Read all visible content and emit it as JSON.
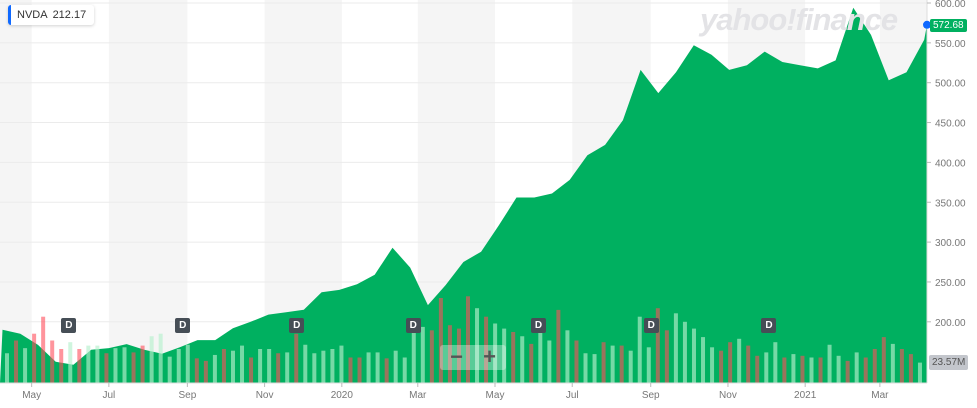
{
  "ticker": {
    "symbol": "NVDA",
    "value": "212.17",
    "accent": "#0f69ff"
  },
  "watermark": "yahoo!finance",
  "zoom_controls": {
    "minus": "−",
    "plus": "+"
  },
  "dividend_marker": "D",
  "dividend_dates": [
    "2019-05-30",
    "2019-08-28",
    "2019-11-26",
    "2020-02-26",
    "2020-06-04",
    "2020-09-01",
    "2020-12-03"
  ],
  "last_price_label": "572.68",
  "last_volume_label": "23.57M",
  "colors": {
    "area": "#00b060",
    "down_volume": "#ff4d5a",
    "up_volume": "#b5f0cc",
    "last_point": "#0f69ff"
  },
  "chart_data": {
    "type": "area",
    "title": "",
    "ylim": [
      150,
      600
    ],
    "y_ticks": [
      "200.00",
      "250.00",
      "300.00",
      "350.00",
      "400.00",
      "450.00",
      "500.00",
      "550.00",
      "600.00"
    ],
    "x_ticks": [
      {
        "label": "May",
        "date": "2019-05-01"
      },
      {
        "label": "Jul",
        "date": "2019-07-01"
      },
      {
        "label": "Sep",
        "date": "2019-09-01"
      },
      {
        "label": "Nov",
        "date": "2019-11-01"
      },
      {
        "label": "2020",
        "date": "2020-01-01"
      },
      {
        "label": "Mar",
        "date": "2020-03-01"
      },
      {
        "label": "May",
        "date": "2020-05-01"
      },
      {
        "label": "Jul",
        "date": "2020-07-01"
      },
      {
        "label": "Sep",
        "date": "2020-09-01"
      },
      {
        "label": "Nov",
        "date": "2020-11-01"
      },
      {
        "label": "2021",
        "date": "2021-01-01"
      },
      {
        "label": "Mar",
        "date": "2021-03-01"
      }
    ],
    "grid": true,
    "series": [
      {
        "x": [
          "2019-04-08",
          "2019-04-22",
          "2019-05-06",
          "2019-05-20",
          "2019-06-03",
          "2019-06-17",
          "2019-07-01",
          "2019-07-15",
          "2019-07-29",
          "2019-08-12",
          "2019-08-26",
          "2019-09-09",
          "2019-09-23",
          "2019-10-07",
          "2019-10-21",
          "2019-11-04",
          "2019-11-18",
          "2019-12-02",
          "2019-12-16",
          "2019-12-30",
          "2020-01-13",
          "2020-01-27",
          "2020-02-10",
          "2020-02-24",
          "2020-03-09",
          "2020-03-23",
          "2020-04-06",
          "2020-04-20",
          "2020-05-04",
          "2020-05-18",
          "2020-06-01",
          "2020-06-15",
          "2020-06-29",
          "2020-07-13",
          "2020-07-27",
          "2020-08-10",
          "2020-08-24",
          "2020-09-07",
          "2020-09-21",
          "2020-10-05",
          "2020-10-19",
          "2020-11-02",
          "2020-11-16",
          "2020-11-30",
          "2020-12-14",
          "2020-12-28",
          "2021-01-11",
          "2021-01-25",
          "2021-02-08",
          "2021-02-22",
          "2021-03-08",
          "2021-03-22",
          "2021-04-05",
          "2021-04-09"
        ],
        "y": [
          190,
          185,
          171,
          150,
          146,
          165,
          167,
          172,
          165,
          160,
          168,
          177,
          177,
          192,
          200,
          209,
          212,
          215,
          237,
          240,
          247,
          259,
          293,
          268,
          221,
          246,
          275,
          288,
          321,
          356,
          356,
          361,
          378,
          409,
          422,
          453,
          516,
          487,
          513,
          547,
          535,
          516,
          522,
          539,
          526,
          522,
          518,
          528,
          594,
          560,
          503,
          513,
          554,
          572.68
        ]
      }
    ],
    "volume": {
      "unit": "M",
      "values": [
        35,
        50,
        41,
        58,
        78,
        50,
        40,
        48,
        40,
        44,
        44,
        35,
        41,
        42,
        36,
        44,
        55,
        58,
        31,
        40,
        45,
        29,
        26,
        33,
        40,
        38,
        44,
        30,
        40,
        40,
        35,
        36,
        58,
        45,
        35,
        38,
        40,
        44,
        30,
        30,
        36,
        36,
        29,
        38,
        30,
        70,
        66,
        62,
        100,
        68,
        64,
        102,
        88,
        78,
        70,
        64,
        60,
        55,
        46,
        65,
        50,
        86,
        62,
        50,
        35,
        34,
        48,
        44,
        44,
        38,
        78,
        42,
        88,
        62,
        82,
        72,
        64,
        54,
        42,
        38,
        48,
        52,
        44,
        32,
        36,
        48,
        30,
        34,
        32,
        30,
        30,
        45,
        32,
        26,
        36,
        30,
        40,
        54,
        46,
        40,
        34,
        24
      ],
      "direction": [
        "u",
        "d",
        "u",
        "d",
        "d",
        "d",
        "d",
        "u",
        "d",
        "u",
        "u",
        "d",
        "u",
        "u",
        "d",
        "d",
        "u",
        "u",
        "u",
        "u",
        "u",
        "d",
        "d",
        "u",
        "d",
        "u",
        "u",
        "d",
        "u",
        "u",
        "d",
        "u",
        "d",
        "u",
        "u",
        "u",
        "u",
        "u",
        "d",
        "d",
        "u",
        "u",
        "d",
        "u",
        "u",
        "u",
        "u",
        "d",
        "d",
        "d",
        "d",
        "d",
        "u",
        "d",
        "u",
        "u",
        "d",
        "u",
        "d",
        "u",
        "u",
        "d",
        "u",
        "d",
        "u",
        "u",
        "d",
        "u",
        "d",
        "u",
        "u",
        "u",
        "d",
        "d",
        "u",
        "u",
        "u",
        "u",
        "u",
        "d",
        "d",
        "u",
        "d",
        "d",
        "u",
        "u",
        "d",
        "u",
        "d",
        "u",
        "d",
        "u",
        "u",
        "d",
        "u",
        "d",
        "d",
        "d",
        "u",
        "d",
        "d",
        "u"
      ],
      "last_label": "23.57M"
    }
  }
}
